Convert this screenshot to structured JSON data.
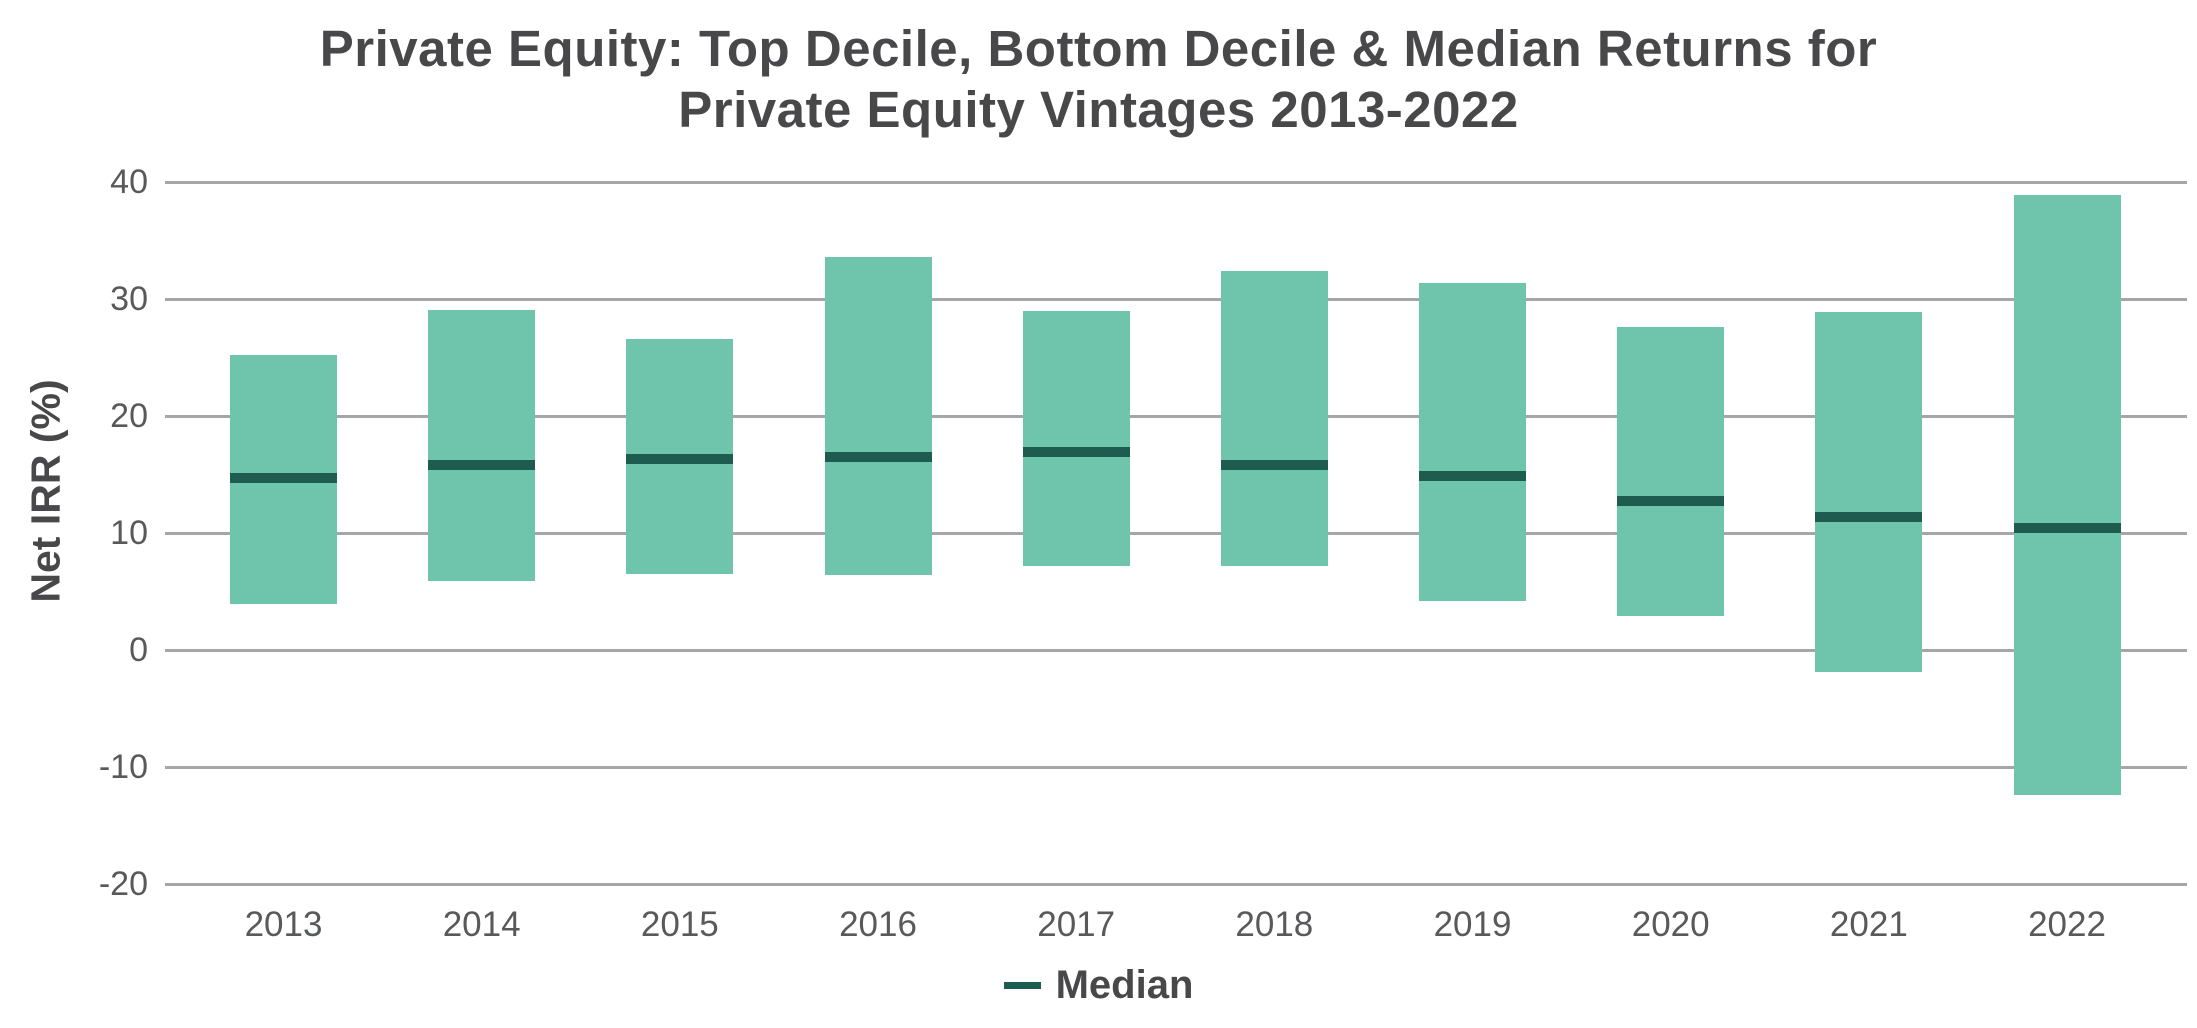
{
  "page": {
    "background": "#FFFFFF"
  },
  "chart_data": {
    "type": "bar",
    "variant": "floating-column-range-with-median-tick",
    "title": "Private Equity: Top Decile, Bottom Decile & Median Returns for Private Equity Vintages 2013-2022",
    "title_lines": [
      "Private Equity: Top Decile, Bottom Decile & Median Returns for",
      "Private Equity Vintages 2013-2022"
    ],
    "xlabel": "",
    "ylabel": "Net IRR (%)",
    "ylim": [
      -20,
      40
    ],
    "yticks": [
      40,
      30,
      20,
      10,
      0,
      -10,
      -20
    ],
    "grid": "horizontal",
    "legend_position": "bottom-center",
    "categories": [
      "2013",
      "2014",
      "2015",
      "2016",
      "2017",
      "2018",
      "2019",
      "2020",
      "2021",
      "2022"
    ],
    "series": [
      {
        "name": "Top Decile",
        "role": "range-top",
        "values": [
          25.2,
          29.1,
          26.6,
          33.6,
          29.0,
          32.4,
          31.4,
          27.6,
          28.9,
          38.9
        ]
      },
      {
        "name": "Bottom Decile",
        "role": "range-bottom",
        "values": [
          3.9,
          5.9,
          6.5,
          6.4,
          7.2,
          7.2,
          4.2,
          2.9,
          -1.9,
          -12.4
        ]
      },
      {
        "name": "Median",
        "role": "median-line",
        "values": [
          14.7,
          15.8,
          16.3,
          16.5,
          16.9,
          15.8,
          14.9,
          12.7,
          11.4,
          10.4
        ]
      }
    ],
    "legend": [
      {
        "label": "Median",
        "swatch": "dash",
        "color": "#1E5C50"
      }
    ],
    "colors": {
      "bar_fill": "#6FC5AC",
      "median_line": "#1E5C50",
      "gridline": "#A6A6A6",
      "title_text": "#48484A",
      "tick_text": "#58595B"
    }
  }
}
